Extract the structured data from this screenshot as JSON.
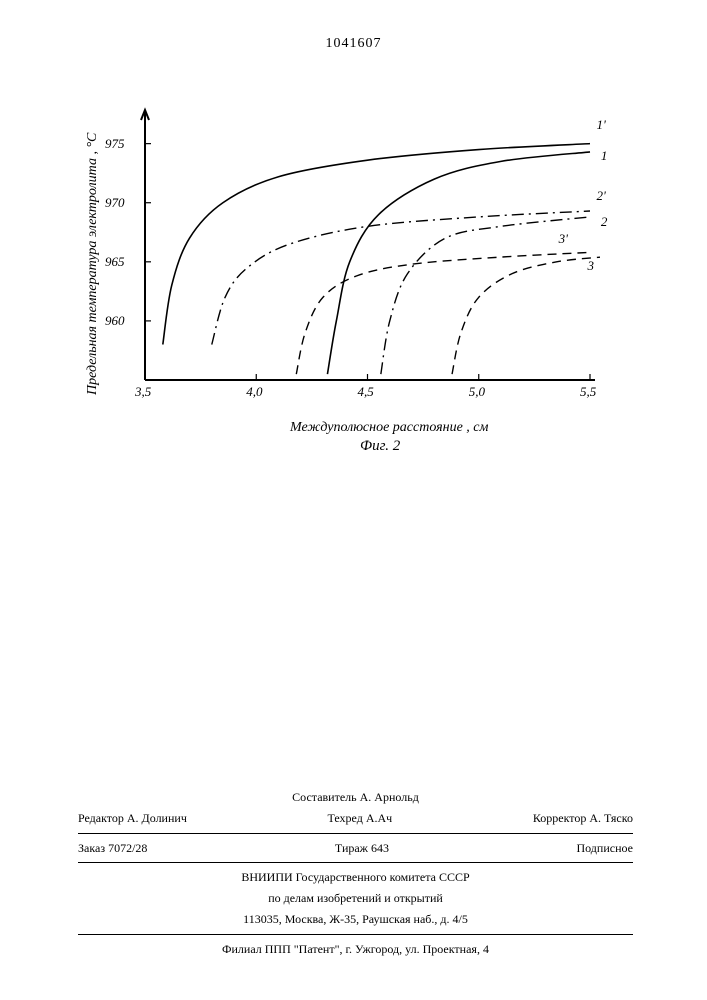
{
  "doc_number": "1041607",
  "chart": {
    "type": "line",
    "xlim": [
      3.5,
      5.5
    ],
    "ylim": [
      955,
      977
    ],
    "xticks": [
      3.5,
      4.0,
      4.5,
      5.0,
      5.5
    ],
    "xtick_labels": [
      "3,5",
      "4,0",
      "4,5",
      "5,0",
      "5,5"
    ],
    "yticks": [
      960,
      965,
      970,
      975
    ],
    "ytick_labels": [
      "960",
      "965",
      "970",
      "975"
    ],
    "xlabel": "Междуполюсное расстояние , см",
    "ylabel": "Предельная температура электролита , °С",
    "caption": "Фиг. 2",
    "background_color": "#ffffff",
    "axis_color": "#000000",
    "axis_width": 2,
    "label_fontsize": 14,
    "tick_fontsize": 13,
    "curves": [
      {
        "name": "1'",
        "style": "solid",
        "color": "#000000",
        "width": 1.6,
        "points": [
          [
            3.58,
            958
          ],
          [
            3.62,
            963
          ],
          [
            3.7,
            967
          ],
          [
            3.85,
            970
          ],
          [
            4.1,
            972.2
          ],
          [
            4.5,
            973.6
          ],
          [
            5.0,
            974.5
          ],
          [
            5.5,
            975
          ]
        ]
      },
      {
        "name": "1",
        "style": "solid",
        "color": "#000000",
        "width": 1.6,
        "points": [
          [
            4.32,
            955.5
          ],
          [
            4.36,
            960
          ],
          [
            4.42,
            965
          ],
          [
            4.55,
            969
          ],
          [
            4.8,
            972
          ],
          [
            5.1,
            973.5
          ],
          [
            5.5,
            974.3
          ]
        ]
      },
      {
        "name": "2'",
        "style": "dashdot",
        "color": "#000000",
        "width": 1.4,
        "points": [
          [
            3.8,
            958
          ],
          [
            3.86,
            962
          ],
          [
            3.96,
            964.5
          ],
          [
            4.15,
            966.5
          ],
          [
            4.5,
            968
          ],
          [
            5.0,
            968.8
          ],
          [
            5.5,
            969.3
          ]
        ]
      },
      {
        "name": "2",
        "style": "dashdot",
        "color": "#000000",
        "width": 1.4,
        "points": [
          [
            4.56,
            955.5
          ],
          [
            4.6,
            960
          ],
          [
            4.68,
            964
          ],
          [
            4.85,
            967
          ],
          [
            5.1,
            968
          ],
          [
            5.5,
            968.8
          ]
        ]
      },
      {
        "name": "3'",
        "style": "dash",
        "color": "#000000",
        "width": 1.4,
        "points": [
          [
            4.18,
            955.5
          ],
          [
            4.22,
            959
          ],
          [
            4.3,
            962
          ],
          [
            4.45,
            963.8
          ],
          [
            4.7,
            964.8
          ],
          [
            5.1,
            965.4
          ],
          [
            5.5,
            965.8
          ]
        ]
      },
      {
        "name": "3",
        "style": "dash",
        "color": "#000000",
        "width": 1.4,
        "points": [
          [
            4.88,
            955.5
          ],
          [
            4.92,
            959
          ],
          [
            5.0,
            962
          ],
          [
            5.15,
            964
          ],
          [
            5.35,
            965
          ],
          [
            5.55,
            965.4
          ]
        ]
      }
    ],
    "curve_label_positions": {
      "1'": [
        5.52,
        976.2
      ],
      "1": [
        5.54,
        973.6
      ],
      "2'": [
        5.52,
        970.2
      ],
      "2": [
        5.54,
        968.0
      ],
      "3'": [
        5.35,
        966.6
      ],
      "3": [
        5.48,
        964.3
      ]
    }
  },
  "footer": {
    "compiler_label": "Составитель",
    "compiler": "А. Арнольд",
    "editor_label": "Редактор",
    "editor": "А. Долинич",
    "tech_label": "Техред",
    "tech": "А.Ач",
    "corrector_label": "Корректор",
    "corrector": "А. Тяско",
    "order_label": "Заказ",
    "order": "7072/28",
    "tirage_label": "Тираж",
    "tirage": "643",
    "subscription": "Подписное",
    "org1": "ВНИИПИ Государственного комитета СССР",
    "org2": "по делам изобретений и открытий",
    "address": "113035, Москва, Ж-35, Раушская наб., д. 4/5",
    "branch": "Филиал ППП \"Патент\", г. Ужгород, ул. Проектная, 4"
  }
}
